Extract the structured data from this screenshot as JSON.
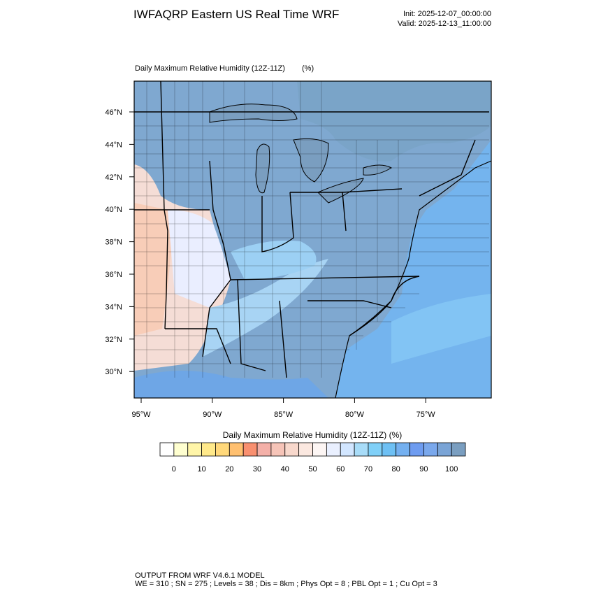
{
  "header": {
    "title": "IWFAQRP Eastern US Real Time WRF",
    "init": "Init: 2025-12-07_00:00:00",
    "valid": "Valid: 2025-12-13_11:00:00"
  },
  "map": {
    "title": "Daily Maximum Relative Humidity (12Z-11Z)",
    "units": "(%)",
    "lat_labels": [
      "46°N",
      "44°N",
      "42°N",
      "40°N",
      "38°N",
      "36°N",
      "34°N",
      "32°N",
      "30°N"
    ],
    "lon_labels": [
      "95°W",
      "90°W",
      "85°W",
      "80°W",
      "75°W"
    ]
  },
  "colorbar": {
    "title": "Daily Maximum Relative Humidity (12Z-11Z)  (%)",
    "colors": [
      "#ffffff",
      "#ffffd0",
      "#fff5a8",
      "#ffe98a",
      "#ffd87a",
      "#ffc070",
      "#f99070",
      "#f4b0a8",
      "#f6c4b8",
      "#f8d8cc",
      "#fbe8e0",
      "#fdf6f4",
      "#eaf0ff",
      "#d2e6ff",
      "#a8dcf8",
      "#80d0f8",
      "#6ec0f4",
      "#74b0f0",
      "#6e9cf0",
      "#7aa8ec",
      "#7aa4d6",
      "#7a9ec0"
    ],
    "ticks": [
      0,
      10,
      20,
      30,
      40,
      50,
      60,
      70,
      80,
      90,
      100
    ]
  },
  "footer": {
    "line1": "OUTPUT FROM WRF V4.6.1 MODEL",
    "line2": "WE = 310 ; SN = 275 ; Levels = 38 ; Dis = 8km ; Phys Opt = 8 ; PBL Opt = 1 ; Cu Opt = 3"
  }
}
